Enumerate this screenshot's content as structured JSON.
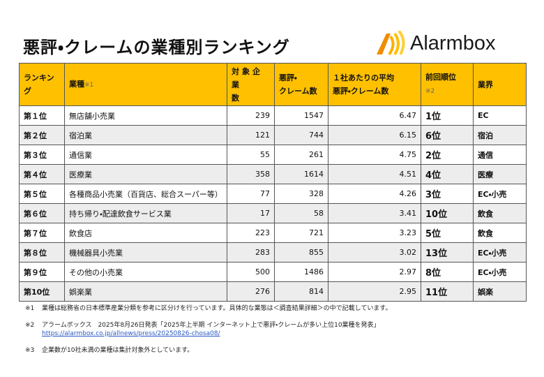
{
  "header": {
    "title": "悪評・クレームの業種別ランキング",
    "logo": "Alarmbox"
  },
  "table": {
    "columns": [
      {
        "lines": [
          "ランキング"
        ]
      },
      {
        "lines": [
          "業種"
        ],
        "note": "※1"
      },
      {
        "lines": [
          "対象企業",
          "数"
        ]
      },
      {
        "lines": [
          "悪評・",
          "クレーム数"
        ]
      },
      {
        "lines": [
          "１社あたりの平均",
          "悪評・クレーム数"
        ]
      },
      {
        "lines": [
          "前回順位"
        ],
        "note": "※2"
      },
      {
        "lines": [
          "業界"
        ]
      }
    ],
    "rows": [
      [
        "第１位",
        "無店舗小売業",
        239,
        1547,
        6.47,
        "1位",
        "EC"
      ],
      [
        "第２位",
        "宿泊業",
        121,
        744,
        6.15,
        "6位",
        "宿泊"
      ],
      [
        "第３位",
        "通信業",
        55,
        261,
        4.75,
        "2位",
        "通信"
      ],
      [
        "第４位",
        "医療業",
        358,
        1614,
        4.51,
        "4位",
        "医療"
      ],
      [
        "第５位",
        "各種商品小売業（百貨店、総合スーパー等）",
        77,
        328,
        4.26,
        "3位",
        "EC・小売"
      ],
      [
        "第６位",
        "持ち帰り・配達飲食サービス業",
        17,
        58,
        3.41,
        "10位",
        "飲食"
      ],
      [
        "第７位",
        "飲食店",
        223,
        721,
        3.23,
        "5位",
        "飲食"
      ],
      [
        "第８位",
        "機械器具小売業",
        283,
        855,
        3.02,
        "13位",
        "EC・小売"
      ],
      [
        "第９位",
        "その他の小売業",
        500,
        1486,
        2.97,
        "8位",
        "EC・小売"
      ],
      [
        "第10位",
        "娯楽業",
        276,
        814,
        2.95,
        "11位",
        "娯楽"
      ]
    ]
  },
  "footnotes": [
    {
      "mark": "※1",
      "text": "業種は総務省の日本標準産業分類を参考に区分けを行っています。具体的な業態は＜調査結果詳細＞の中で記載しています。"
    },
    {
      "mark": "※2",
      "text": "アラームボックス　2025年8月26日発表「2025年上半期 インターネット上で悪評・クレームが多い上位10業種を発表」",
      "link": "https://alarmbox.co.jp/allnews/press/20250826-chosa08/"
    },
    {
      "mark": "※3",
      "text": "企業数が10社未満の業種は集計対象外としています。"
    }
  ]
}
